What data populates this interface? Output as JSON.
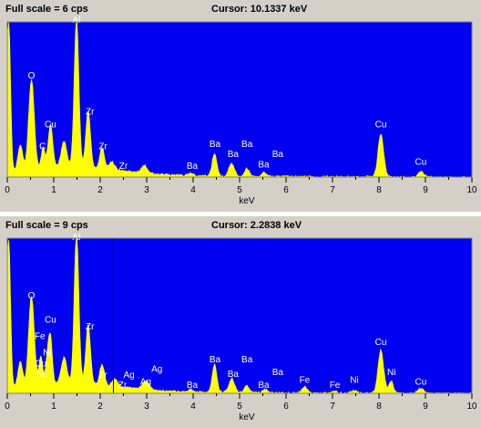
{
  "colors": {
    "plot_bg": "#0000f0",
    "spectrum": "#ffff00",
    "panel_bg": "#d4d0c8",
    "cursor": "#000000"
  },
  "chart_data": [
    {
      "type": "area",
      "header_left": "Full scale = 6  cps",
      "header_right": "Cursor:  10.1337 keV",
      "xlabel": "keV",
      "xlim": [
        0,
        10
      ],
      "ylim": [
        0,
        6
      ],
      "x_ticks": [
        "0",
        "1",
        "2",
        "3",
        "4",
        "5",
        "6",
        "7",
        "8",
        "9",
        "10"
      ],
      "cursor_kev": 10.1337,
      "peaks": [
        {
          "x": 0.03,
          "h": 5.8,
          "w": 0.04
        },
        {
          "x": 0.28,
          "h": 1.0,
          "w": 0.05
        },
        {
          "x": 0.52,
          "h": 3.5,
          "w": 0.06
        },
        {
          "x": 0.77,
          "h": 0.8,
          "w": 0.04
        },
        {
          "x": 0.93,
          "h": 1.7,
          "w": 0.05
        },
        {
          "x": 1.22,
          "h": 1.0,
          "w": 0.06
        },
        {
          "x": 1.49,
          "h": 5.8,
          "w": 0.05
        },
        {
          "x": 1.74,
          "h": 2.2,
          "w": 0.05
        },
        {
          "x": 2.04,
          "h": 0.8,
          "w": 0.05
        },
        {
          "x": 2.25,
          "h": 0.3,
          "w": 0.06
        },
        {
          "x": 2.95,
          "h": 0.3,
          "w": 0.06
        },
        {
          "x": 3.95,
          "h": 0.1,
          "w": 0.05
        },
        {
          "x": 4.46,
          "h": 0.9,
          "w": 0.05
        },
        {
          "x": 4.83,
          "h": 0.5,
          "w": 0.06
        },
        {
          "x": 5.16,
          "h": 0.3,
          "w": 0.05
        },
        {
          "x": 5.53,
          "h": 0.15,
          "w": 0.05
        },
        {
          "x": 8.04,
          "h": 1.65,
          "w": 0.06
        },
        {
          "x": 8.9,
          "h": 0.2,
          "w": 0.06
        }
      ],
      "labels": [
        {
          "text": "O",
          "x": 0.52,
          "y": 3.75
        },
        {
          "text": "Cu",
          "x": 0.93,
          "y": 1.85
        },
        {
          "text": "C",
          "x": 0.76,
          "y": 1.0
        },
        {
          "text": "Al",
          "x": 1.49,
          "y": 5.9
        },
        {
          "text": "Zr",
          "x": 1.78,
          "y": 2.35
        },
        {
          "text": "Zr",
          "x": 2.06,
          "y": 1.0
        },
        {
          "text": "Zr",
          "x": 2.5,
          "y": 0.25
        },
        {
          "text": "Ba",
          "x": 3.98,
          "y": 0.25
        },
        {
          "text": "Ba",
          "x": 4.47,
          "y": 1.1
        },
        {
          "text": "Ba",
          "x": 4.86,
          "y": 0.7
        },
        {
          "text": "Ba",
          "x": 5.16,
          "y": 1.1
        },
        {
          "text": "Ba",
          "x": 5.52,
          "y": 0.3
        },
        {
          "text": "Ba",
          "x": 5.82,
          "y": 0.7
        },
        {
          "text": "Cu",
          "x": 8.04,
          "y": 1.85
        },
        {
          "text": "Cu",
          "x": 8.9,
          "y": 0.4
        }
      ]
    },
    {
      "type": "area",
      "header_left": "Full scale = 9  cps",
      "header_right": "Cursor:  2.2838 keV",
      "xlabel": "keV",
      "xlim": [
        0,
        10
      ],
      "ylim": [
        0,
        9
      ],
      "x_ticks": [
        "0",
        "1",
        "2",
        "3",
        "4",
        "5",
        "6",
        "7",
        "8",
        "9",
        "10"
      ],
      "cursor_kev": 2.2838,
      "peaks": [
        {
          "x": 0.03,
          "h": 8.6,
          "w": 0.04
        },
        {
          "x": 0.28,
          "h": 1.5,
          "w": 0.05
        },
        {
          "x": 0.52,
          "h": 5.2,
          "w": 0.06
        },
        {
          "x": 0.72,
          "h": 1.6,
          "w": 0.04
        },
        {
          "x": 0.86,
          "h": 1.4,
          "w": 0.04
        },
        {
          "x": 0.93,
          "h": 2.6,
          "w": 0.04
        },
        {
          "x": 1.22,
          "h": 1.5,
          "w": 0.06
        },
        {
          "x": 1.49,
          "h": 8.7,
          "w": 0.05
        },
        {
          "x": 1.74,
          "h": 3.4,
          "w": 0.05
        },
        {
          "x": 2.04,
          "h": 1.2,
          "w": 0.05
        },
        {
          "x": 2.32,
          "h": 0.4,
          "w": 0.06
        },
        {
          "x": 2.98,
          "h": 0.5,
          "w": 0.07
        },
        {
          "x": 3.95,
          "h": 0.15,
          "w": 0.05
        },
        {
          "x": 4.46,
          "h": 1.6,
          "w": 0.05
        },
        {
          "x": 4.83,
          "h": 0.8,
          "w": 0.06
        },
        {
          "x": 5.16,
          "h": 0.4,
          "w": 0.05
        },
        {
          "x": 5.55,
          "h": 0.2,
          "w": 0.05
        },
        {
          "x": 6.4,
          "h": 0.35,
          "w": 0.06
        },
        {
          "x": 7.05,
          "h": 0.1,
          "w": 0.05
        },
        {
          "x": 7.47,
          "h": 0.15,
          "w": 0.06
        },
        {
          "x": 8.04,
          "h": 2.5,
          "w": 0.06
        },
        {
          "x": 8.26,
          "h": 0.7,
          "w": 0.05
        },
        {
          "x": 8.9,
          "h": 0.3,
          "w": 0.06
        }
      ],
      "labels": [
        {
          "text": "O",
          "x": 0.52,
          "y": 5.4
        },
        {
          "text": "Fe",
          "x": 0.7,
          "y": 3.05
        },
        {
          "text": "Cu",
          "x": 0.93,
          "y": 4.0
        },
        {
          "text": "Ni",
          "x": 0.86,
          "y": 2.1
        },
        {
          "text": "Cu",
          "x": 0.72,
          "y": 1.45
        },
        {
          "text": "Ni",
          "x": 0.72,
          "y": 0.85
        },
        {
          "text": "Al",
          "x": 1.49,
          "y": 8.8
        },
        {
          "text": "Zr",
          "x": 1.78,
          "y": 3.6
        },
        {
          "text": "Zr",
          "x": 2.06,
          "y": 0.8
        },
        {
          "text": "Zr",
          "x": 2.48,
          "y": 0.2
        },
        {
          "text": "Ag",
          "x": 2.62,
          "y": 0.8
        },
        {
          "text": "Ag",
          "x": 2.98,
          "y": 0.4
        },
        {
          "text": "Ag",
          "x": 3.22,
          "y": 1.15
        },
        {
          "text": "Ba",
          "x": 3.98,
          "y": 0.2
        },
        {
          "text": "Ba",
          "x": 4.47,
          "y": 1.7
        },
        {
          "text": "Ba",
          "x": 4.86,
          "y": 0.85
        },
        {
          "text": "Ba",
          "x": 5.16,
          "y": 1.7
        },
        {
          "text": "Ba",
          "x": 5.52,
          "y": 0.2
        },
        {
          "text": "Ba",
          "x": 5.82,
          "y": 0.95
        },
        {
          "text": "Fe",
          "x": 6.4,
          "y": 0.5
        },
        {
          "text": "Fe",
          "x": 7.05,
          "y": 0.2
        },
        {
          "text": "Ni",
          "x": 7.47,
          "y": 0.5
        },
        {
          "text": "Cu",
          "x": 8.04,
          "y": 2.7
        },
        {
          "text": "Ni",
          "x": 8.27,
          "y": 0.95
        },
        {
          "text": "Cu",
          "x": 8.9,
          "y": 0.4
        }
      ]
    }
  ]
}
